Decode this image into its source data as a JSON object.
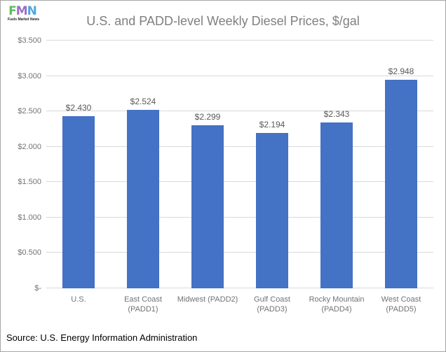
{
  "header": {
    "title": "U.S. and PADD-level Weekly Diesel Prices, $/gal",
    "logo": {
      "letters": [
        {
          "char": "F",
          "color": "#5cbd5c"
        },
        {
          "char": "M",
          "color": "#9b6fc8"
        },
        {
          "char": "N",
          "color": "#4fa8da"
        }
      ],
      "caption": "Fuels Market News"
    }
  },
  "chart_data": {
    "type": "bar",
    "title": "U.S. and PADD-level Weekly Diesel Prices, $/gal",
    "categories": [
      "U.S.",
      "East Coast (PADD1)",
      "Midwest (PADD2)",
      "Gulf Coast (PADD3)",
      "Rocky Mountain (PADD4)",
      "West Coast (PADD5)"
    ],
    "category_lines": [
      [
        "U.S."
      ],
      [
        "East Coast",
        "(PADD1)"
      ],
      [
        "Midwest (PADD2)"
      ],
      [
        "Gulf Coast",
        "(PADD3)"
      ],
      [
        "Rocky Mountain",
        "(PADD4)"
      ],
      [
        "West Coast",
        "(PADD5)"
      ]
    ],
    "values": [
      2.43,
      2.524,
      2.299,
      2.194,
      2.343,
      2.948
    ],
    "data_labels": [
      "$2.430",
      "$2.524",
      "$2.299",
      "$2.194",
      "$2.343",
      "$2.948"
    ],
    "xlabel": "",
    "ylabel": "",
    "ylim": [
      0,
      3.5
    ],
    "ytick_interval": 0.5,
    "ytick_labels": [
      "$-",
      "$0.500",
      "$1.000",
      "$1.500",
      "$2.000",
      "$2.500",
      "$3.000",
      "$3.500"
    ],
    "grid": true,
    "legend": false,
    "bar_color": "#4472c4"
  },
  "footer": {
    "source": "Source: U.S. Energy Information Administration"
  },
  "colors": {
    "bar": "#4472c4",
    "gridline": "#d9d9d9",
    "axis_text": "#737373",
    "title_text": "#7f7f7f",
    "data_label_text": "#595959",
    "border": "#a6a6a6"
  }
}
